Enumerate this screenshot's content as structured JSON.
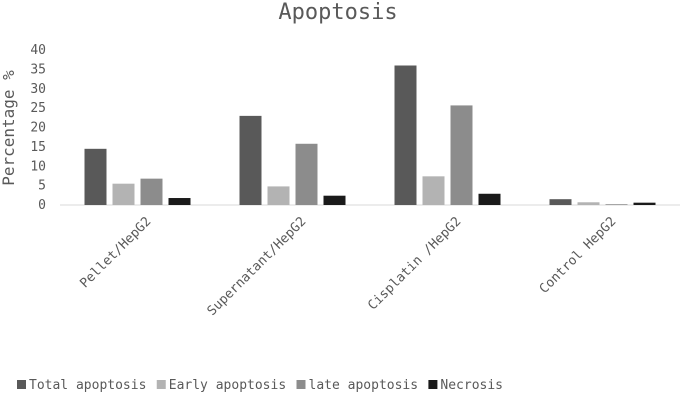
{
  "chart_data": {
    "type": "bar",
    "title": "Apoptosis",
    "xlabel": "",
    "ylabel": "Percentage %",
    "ylim": [
      0,
      40
    ],
    "yticks": [
      "0",
      "5",
      "10",
      "15",
      "20",
      "25",
      "30",
      "35",
      "40"
    ],
    "grid": false,
    "legend_position": "bottom",
    "categories": [
      "Pellet/HepG2",
      "Supernatant/HepG2",
      "Cisplatin /HepG2",
      "Control HepG2"
    ],
    "series": [
      {
        "name": "Total apoptosis",
        "color": "#595959",
        "values": [
          14.5,
          23.0,
          36.0,
          1.5
        ]
      },
      {
        "name": "Early apoptosis",
        "color": "#b3b3b3",
        "values": [
          5.5,
          4.8,
          7.4,
          0.7
        ]
      },
      {
        "name": "late apoptosis",
        "color": "#8c8c8c",
        "values": [
          6.8,
          15.8,
          25.7,
          0.2
        ]
      },
      {
        "name": "Necrosis",
        "color": "#1a1a1a",
        "values": [
          1.8,
          2.4,
          2.9,
          0.6
        ]
      }
    ]
  }
}
